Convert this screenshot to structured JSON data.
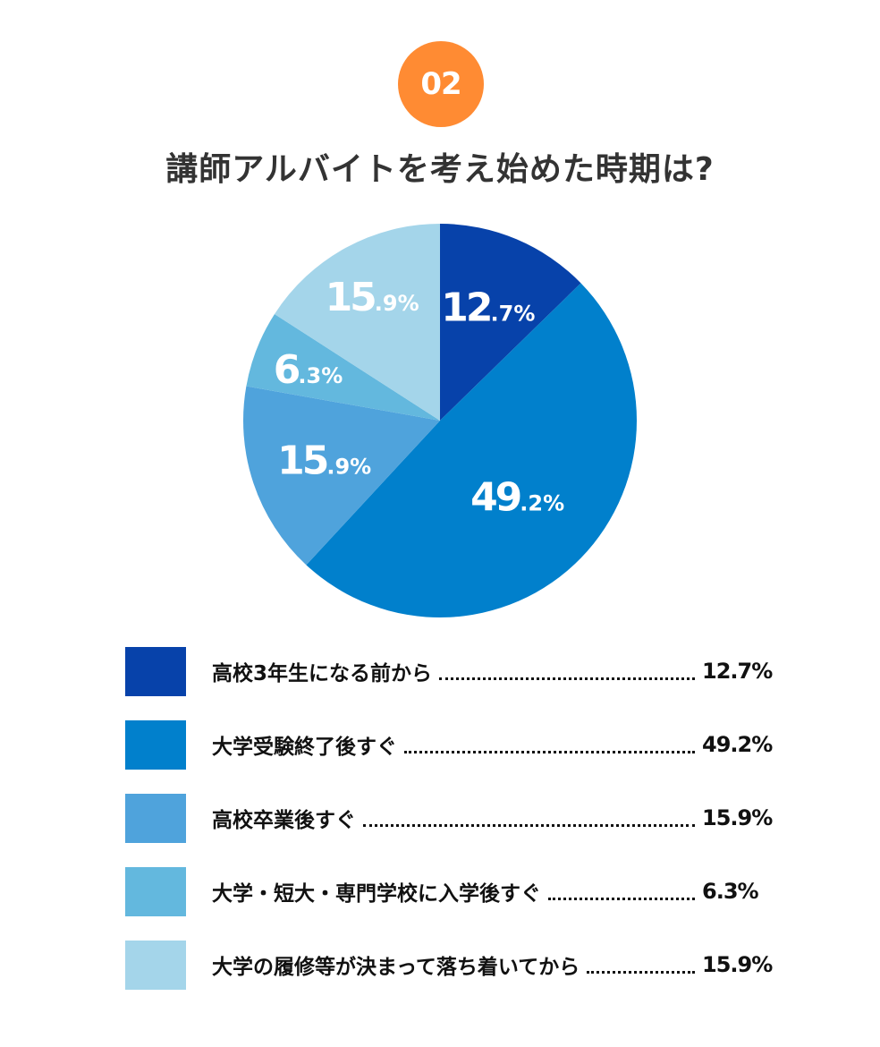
{
  "badge": "02",
  "chart_data": {
    "type": "pie",
    "title": "講師アルバイトを考え始めた時期は?",
    "start": "top",
    "direction": "clockwise",
    "slices": [
      {
        "label": "高校3年生になる前から",
        "value": 12.7,
        "display": "12.7%",
        "color": "#0742aa"
      },
      {
        "label": "大学受験終了後すぐ",
        "value": 49.2,
        "display": "49.2%",
        "color": "#0180cc"
      },
      {
        "label": "高校卒業後すぐ",
        "value": 15.9,
        "display": "15.9%",
        "color": "#4fa3dc"
      },
      {
        "label": "大学・短大・専門学校に入学後すぐ",
        "value": 6.3,
        "display": "6.3%",
        "color": "#63b8de"
      },
      {
        "label": "大学の履修等が決まって落ち着いてから",
        "value": 15.9,
        "display": "15.9%",
        "color": "#a4d5ea"
      }
    ]
  }
}
